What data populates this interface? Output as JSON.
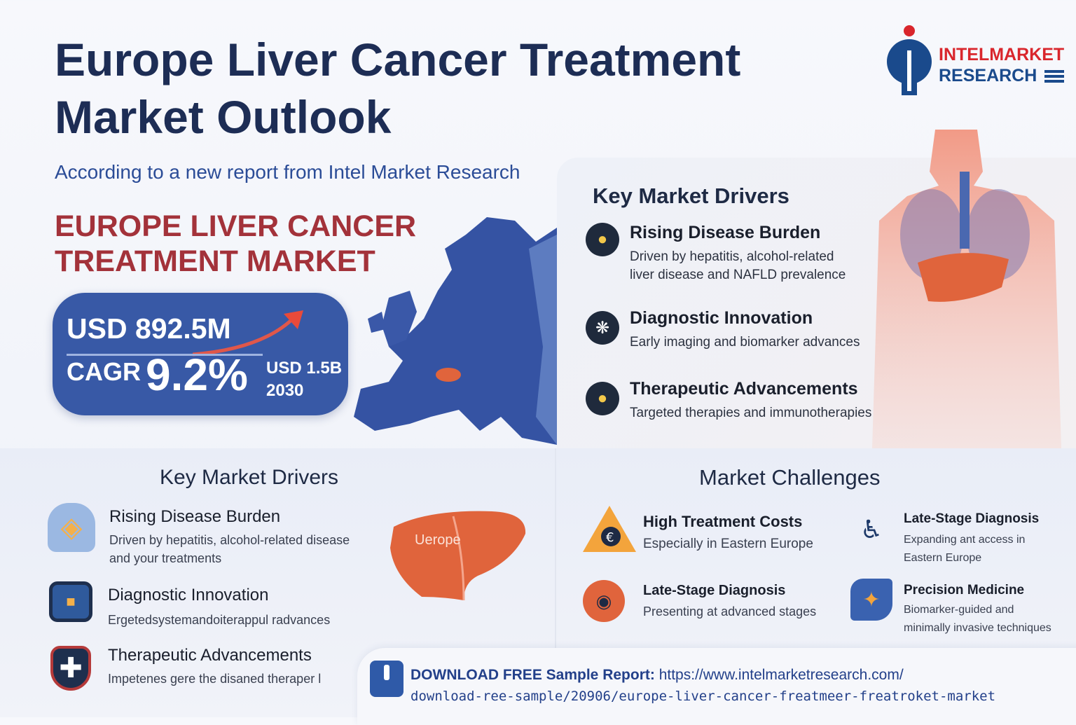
{
  "header": {
    "title": "Europe Liver Cancer Treatment Market Outlook",
    "subtitle": "According to a new report from Intel Market Research",
    "headline_line1": "EUROPE LIVER CANCER",
    "headline_line2": "TREATMENT MARKET"
  },
  "logo": {
    "line1": "INTELMARKET",
    "line2": "RESEARCH"
  },
  "stats": {
    "current_value": "USD 892.5M",
    "cagr_label": "CAGR",
    "cagr_value": "9.2%",
    "forecast_value": "USD 1.5B",
    "forecast_year": "2030"
  },
  "top_drivers": {
    "heading": "Key Market Drivers",
    "items": [
      {
        "title": "Rising Disease Burden",
        "desc_line1": "Driven by hepatitis, alcohol-related",
        "desc_line2": "liver disease and NAFLD prevalence",
        "icon": "lightbulb-icon"
      },
      {
        "title": "Diagnostic Innovation",
        "desc_line1": "Early imaging and biomarker advances",
        "icon": "molecule-icon"
      },
      {
        "title": "Therapeutic Advancements",
        "desc_line1": "Targeted therapies and immunotherapies",
        "icon": "bulb-hand-icon"
      }
    ]
  },
  "bottom_drivers": {
    "heading": "Key Market Drivers",
    "items": [
      {
        "title": "Rising Disease Burden",
        "desc_line1": "Driven by hepatitis, alcohol-related disease",
        "desc_line2": "and your treatments",
        "icon": "patient-icon"
      },
      {
        "title": "Diagnostic Innovation",
        "desc_line1": "Ergetedsystemandoiterappul radvances",
        "icon": "monitor-icon"
      },
      {
        "title": "Therapeutic Advancements",
        "desc_line1": "Impetenes gere the disaned theraper l",
        "icon": "medical-shield-icon"
      }
    ]
  },
  "liver_label": "Uerope",
  "challenges": {
    "heading": "Market Challenges",
    "items": [
      {
        "title": "High Treatment Costs",
        "desc_line1": "Especially in Eastern Europe",
        "icon": "euro-warning-icon"
      },
      {
        "title": "Late-Stage Diagnosis",
        "desc_line1": "Expanding ant access in",
        "desc_line2": "Eastern Europe",
        "icon": "doctor-lab-icon"
      },
      {
        "title": "Late-Stage Diagnosis",
        "desc_line1": "Presenting at advanced stages",
        "icon": "organ-scan-icon"
      },
      {
        "title": "Precision Medicine",
        "desc_line1": "Biomarker-guided and",
        "desc_line2": "minimally invasive techniques",
        "icon": "puzzle-hand-icon"
      }
    ]
  },
  "download": {
    "label": "DOWNLOAD FREE Sample Report:",
    "url_line1": "https://www.intelmarketresearch.com/",
    "url_line2": "download-ree-sample/20906/europe-liver-cancer-freatmeer-freatroket-market"
  },
  "colors": {
    "navy": "#1d2d55",
    "accent_red": "#a3323a",
    "stats_blue": "#3859a6",
    "map_blue": "#3553a3",
    "liver_orange": "#e0643c"
  }
}
